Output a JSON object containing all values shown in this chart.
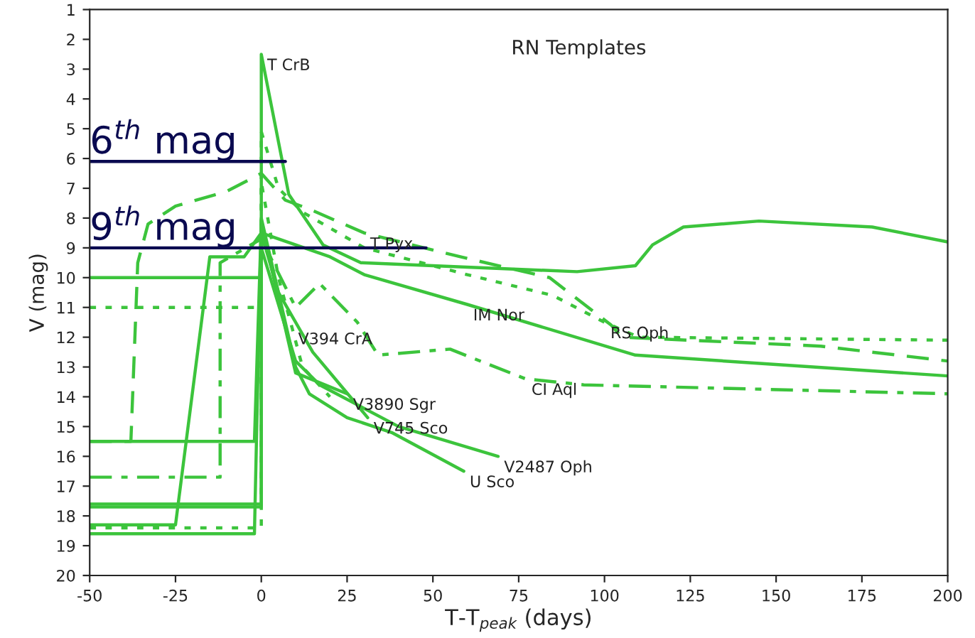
{
  "chart_data": {
    "type": "line",
    "title": "RN Templates",
    "xlabel": "T-T$_{peak}$ (days)",
    "ylabel": "V (mag)",
    "xlim": [
      -50,
      200
    ],
    "xticks": [
      -50,
      -25,
      0,
      25,
      50,
      75,
      100,
      125,
      150,
      175,
      200
    ],
    "ylim": [
      20,
      1
    ],
    "yticks": [
      1,
      2,
      3,
      4,
      5,
      6,
      7,
      8,
      9,
      10,
      11,
      12,
      13,
      14,
      15,
      16,
      17,
      18,
      19,
      20
    ],
    "grid": false,
    "legend": false,
    "marker": "none",
    "series": [
      {
        "color": "#3cc43c",
        "line_style": "solid",
        "x": [
          -50,
          0,
          0,
          8,
          18,
          29,
          92,
          109,
          114,
          123,
          145,
          178,
          200
        ],
        "values": [
          10,
          10,
          2.5,
          7.2,
          8.9,
          9.5,
          9.8,
          9.6,
          8.9,
          8.3,
          8.1,
          8.3,
          8.8
        ]
      },
      {
        "color": "#3cc43c",
        "line_style": "dashed",
        "x": [
          -50,
          -38,
          -36,
          -33,
          -25,
          -10,
          0,
          7,
          14,
          30,
          58,
          84,
          102,
          105,
          163,
          200
        ],
        "values": [
          15.5,
          15.5,
          9.5,
          8.2,
          7.6,
          7.1,
          6.5,
          7.4,
          7.7,
          8.5,
          9.3,
          10.0,
          11.6,
          12.0,
          12.3,
          12.8
        ]
      },
      {
        "color": "#3cc43c",
        "line_style": "dotted",
        "x": [
          -50,
          0,
          0,
          5,
          12,
          30,
          60,
          85,
          100,
          110,
          200
        ],
        "values": [
          11,
          11,
          5.1,
          7.0,
          7.8,
          9.0,
          9.9,
          10.6,
          11.5,
          12.0,
          12.1
        ]
      },
      {
        "color": "#3cc43c",
        "line_style": "solid",
        "x": [
          -50,
          -25,
          -15,
          -5,
          0,
          20,
          30,
          60,
          109,
          200
        ],
        "values": [
          18.3,
          18.3,
          9.3,
          9.3,
          8.5,
          9.3,
          9.9,
          10.9,
          12.6,
          13.3
        ]
      },
      {
        "color": "#3cc43c",
        "line_style": "dashdot",
        "x": [
          -50,
          -12,
          -12,
          0,
          10,
          17,
          28,
          34,
          55,
          77,
          94,
          200
        ],
        "values": [
          16.7,
          16.7,
          9.5,
          8.7,
          11.0,
          10.2,
          11.5,
          12.6,
          12.4,
          13.4,
          13.6,
          13.9
        ]
      },
      {
        "color": "#3cc43c",
        "line_style": "dotted",
        "x": [
          -50,
          0,
          0,
          5,
          9,
          12,
          20
        ],
        "values": [
          18.4,
          18.4,
          6.8,
          10.0,
          11.7,
          13.0,
          14.0
        ]
      },
      {
        "color": "#3cc43c",
        "line_style": "solid",
        "x": [
          -50,
          -2,
          0,
          10,
          25
        ],
        "values": [
          15.5,
          15.5,
          8.2,
          13.2,
          13.9
        ]
      },
      {
        "color": "#3cc43c",
        "line_style": "solid",
        "x": [
          -50,
          0,
          0,
          5,
          15,
          31
        ],
        "values": [
          17.7,
          17.7,
          8.5,
          10.5,
          12.5,
          14.7
        ]
      },
      {
        "color": "#3cc43c",
        "line_style": "solid",
        "x": [
          -50,
          0,
          0,
          10,
          17,
          40,
          69
        ],
        "values": [
          17.6,
          17.6,
          9.0,
          12.8,
          13.6,
          15.0,
          16.0
        ]
      },
      {
        "color": "#3cc43c",
        "line_style": "solid",
        "x": [
          -50,
          -2,
          0,
          10,
          14,
          25,
          38,
          59
        ],
        "values": [
          18.6,
          18.6,
          8.0,
          13.0,
          13.9,
          14.7,
          15.2,
          16.5
        ]
      },
      {
        "name": "6$^{th}$ mag",
        "color": "#0a0a50",
        "line_style": "solid",
        "x": [
          -50,
          7
        ],
        "values": [
          6.1,
          6.1
        ]
      },
      {
        "name": "9$^{th}$ mag",
        "color": "#0a0a50",
        "line_style": "solid",
        "x": [
          -50,
          48
        ],
        "values": [
          9.0,
          9.0
        ]
      }
    ],
    "annotations": [
      {
        "text": "T CrB",
        "x": 0,
        "y": 2.5
      },
      {
        "text": "T Pyx",
        "x": 30,
        "y": 8.5
      },
      {
        "text": "IM Nor",
        "x": 60,
        "y": 10.9
      },
      {
        "text": "RS Oph",
        "x": 100,
        "y": 11.5
      },
      {
        "text": "V394 CrA",
        "x": 9,
        "y": 11.7
      },
      {
        "text": "V3890 Sgr",
        "x": 25,
        "y": 13.9
      },
      {
        "text": "V745 Sco",
        "x": 31,
        "y": 14.7
      },
      {
        "text": "CI Aql",
        "x": 77,
        "y": 13.4
      },
      {
        "text": "V2487 Oph",
        "x": 69,
        "y": 16.0
      },
      {
        "text": "U Sco",
        "x": 59,
        "y": 16.5
      }
    ]
  }
}
